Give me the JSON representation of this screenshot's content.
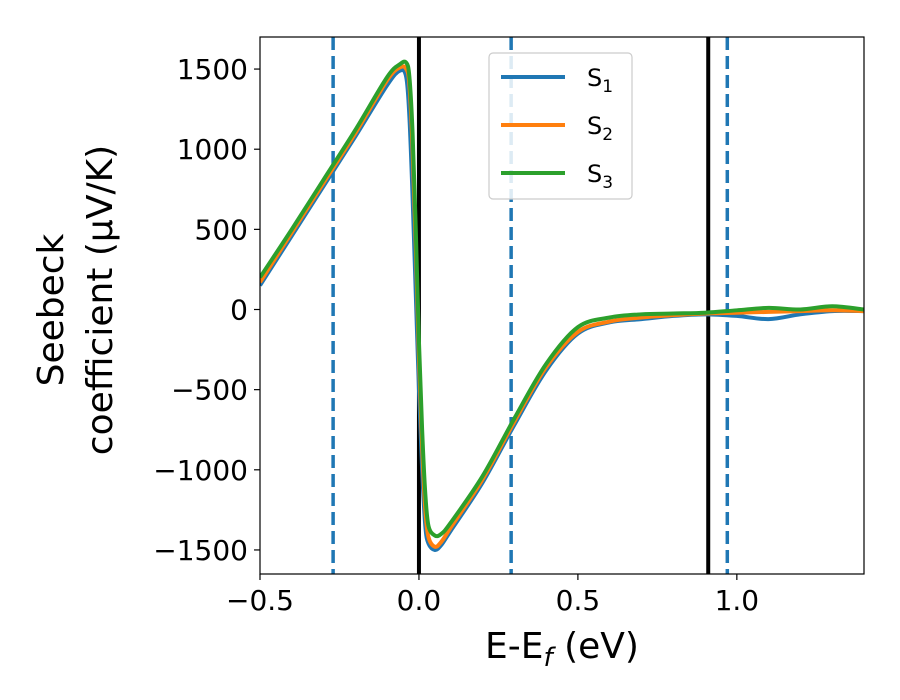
{
  "chart_data": {
    "type": "line",
    "xlabel": "E-E",
    "xlabel_sub": "f",
    "xlabel_unit": " (eV)",
    "ylabel_line1": "Seebeck",
    "ylabel_line2": "coefficient  (μV/K)",
    "xlim": [
      -0.5,
      1.4
    ],
    "ylim": [
      -1650,
      1700
    ],
    "xticks": [
      {
        "value": -0.5,
        "label": "−0.5"
      },
      {
        "value": 0.0,
        "label": "0.0"
      },
      {
        "value": 0.5,
        "label": "0.5"
      },
      {
        "value": 1.0,
        "label": "1.0"
      }
    ],
    "yticks": [
      {
        "value": 1500,
        "label": "1500"
      },
      {
        "value": 1000,
        "label": "1000"
      },
      {
        "value": 500,
        "label": "500"
      },
      {
        "value": 0,
        "label": "0"
      },
      {
        "value": -500,
        "label": "−500"
      },
      {
        "value": -1000,
        "label": "−1000"
      },
      {
        "value": -1500,
        "label": "−1500"
      }
    ],
    "legend_position": "top-center",
    "vlines_solid": {
      "color": "#000000",
      "x": [
        0.0,
        0.91
      ]
    },
    "vlines_dashed": {
      "color": "#1f77b4",
      "x": [
        -0.27,
        0.29,
        0.97
      ]
    },
    "series": [
      {
        "name": "S",
        "sub": "1",
        "color": "#1f77b4",
        "x": [
          -0.5,
          -0.4,
          -0.3,
          -0.2,
          -0.1,
          -0.06,
          -0.04,
          -0.03,
          -0.02,
          -0.01,
          0.0,
          0.01,
          0.02,
          0.03,
          0.05,
          0.07,
          0.1,
          0.2,
          0.3,
          0.4,
          0.5,
          0.6,
          0.7,
          0.8,
          0.9,
          1.0,
          1.1,
          1.2,
          1.3,
          1.4
        ],
        "y": [
          150,
          460,
          770,
          1080,
          1400,
          1490,
          1450,
          1200,
          700,
          100,
          -500,
          -1000,
          -1350,
          -1460,
          -1500,
          -1470,
          -1380,
          -1080,
          -720,
          -380,
          -150,
          -80,
          -60,
          -40,
          -30,
          -40,
          -60,
          -30,
          -10,
          -10
        ]
      },
      {
        "name": "S",
        "sub": "2",
        "color": "#ff7f0e",
        "x": [
          -0.5,
          -0.4,
          -0.3,
          -0.2,
          -0.1,
          -0.06,
          -0.04,
          -0.03,
          -0.02,
          -0.01,
          0.0,
          0.01,
          0.02,
          0.03,
          0.05,
          0.07,
          0.1,
          0.2,
          0.3,
          0.4,
          0.5,
          0.6,
          0.7,
          0.8,
          0.9,
          1.0,
          1.1,
          1.2,
          1.3,
          1.4
        ],
        "y": [
          170,
          480,
          790,
          1100,
          1430,
          1510,
          1500,
          1400,
          1000,
          400,
          -300,
          -850,
          -1250,
          -1420,
          -1480,
          -1450,
          -1360,
          -1060,
          -700,
          -360,
          -140,
          -75,
          -50,
          -35,
          -25,
          -20,
          -15,
          -10,
          -5,
          -10
        ]
      },
      {
        "name": "S",
        "sub": "3",
        "color": "#2ca02c",
        "x": [
          -0.5,
          -0.4,
          -0.3,
          -0.2,
          -0.1,
          -0.06,
          -0.04,
          -0.03,
          -0.02,
          -0.01,
          0.0,
          0.01,
          0.02,
          0.03,
          0.05,
          0.07,
          0.1,
          0.2,
          0.3,
          0.4,
          0.5,
          0.6,
          0.7,
          0.8,
          0.9,
          1.0,
          1.1,
          1.2,
          1.3,
          1.4
        ],
        "y": [
          200,
          500,
          810,
          1120,
          1450,
          1530,
          1540,
          1450,
          1100,
          500,
          -200,
          -750,
          -1150,
          -1350,
          -1410,
          -1400,
          -1330,
          -1040,
          -680,
          -340,
          -110,
          -50,
          -30,
          -25,
          -20,
          -5,
          10,
          0,
          20,
          0
        ]
      }
    ]
  }
}
